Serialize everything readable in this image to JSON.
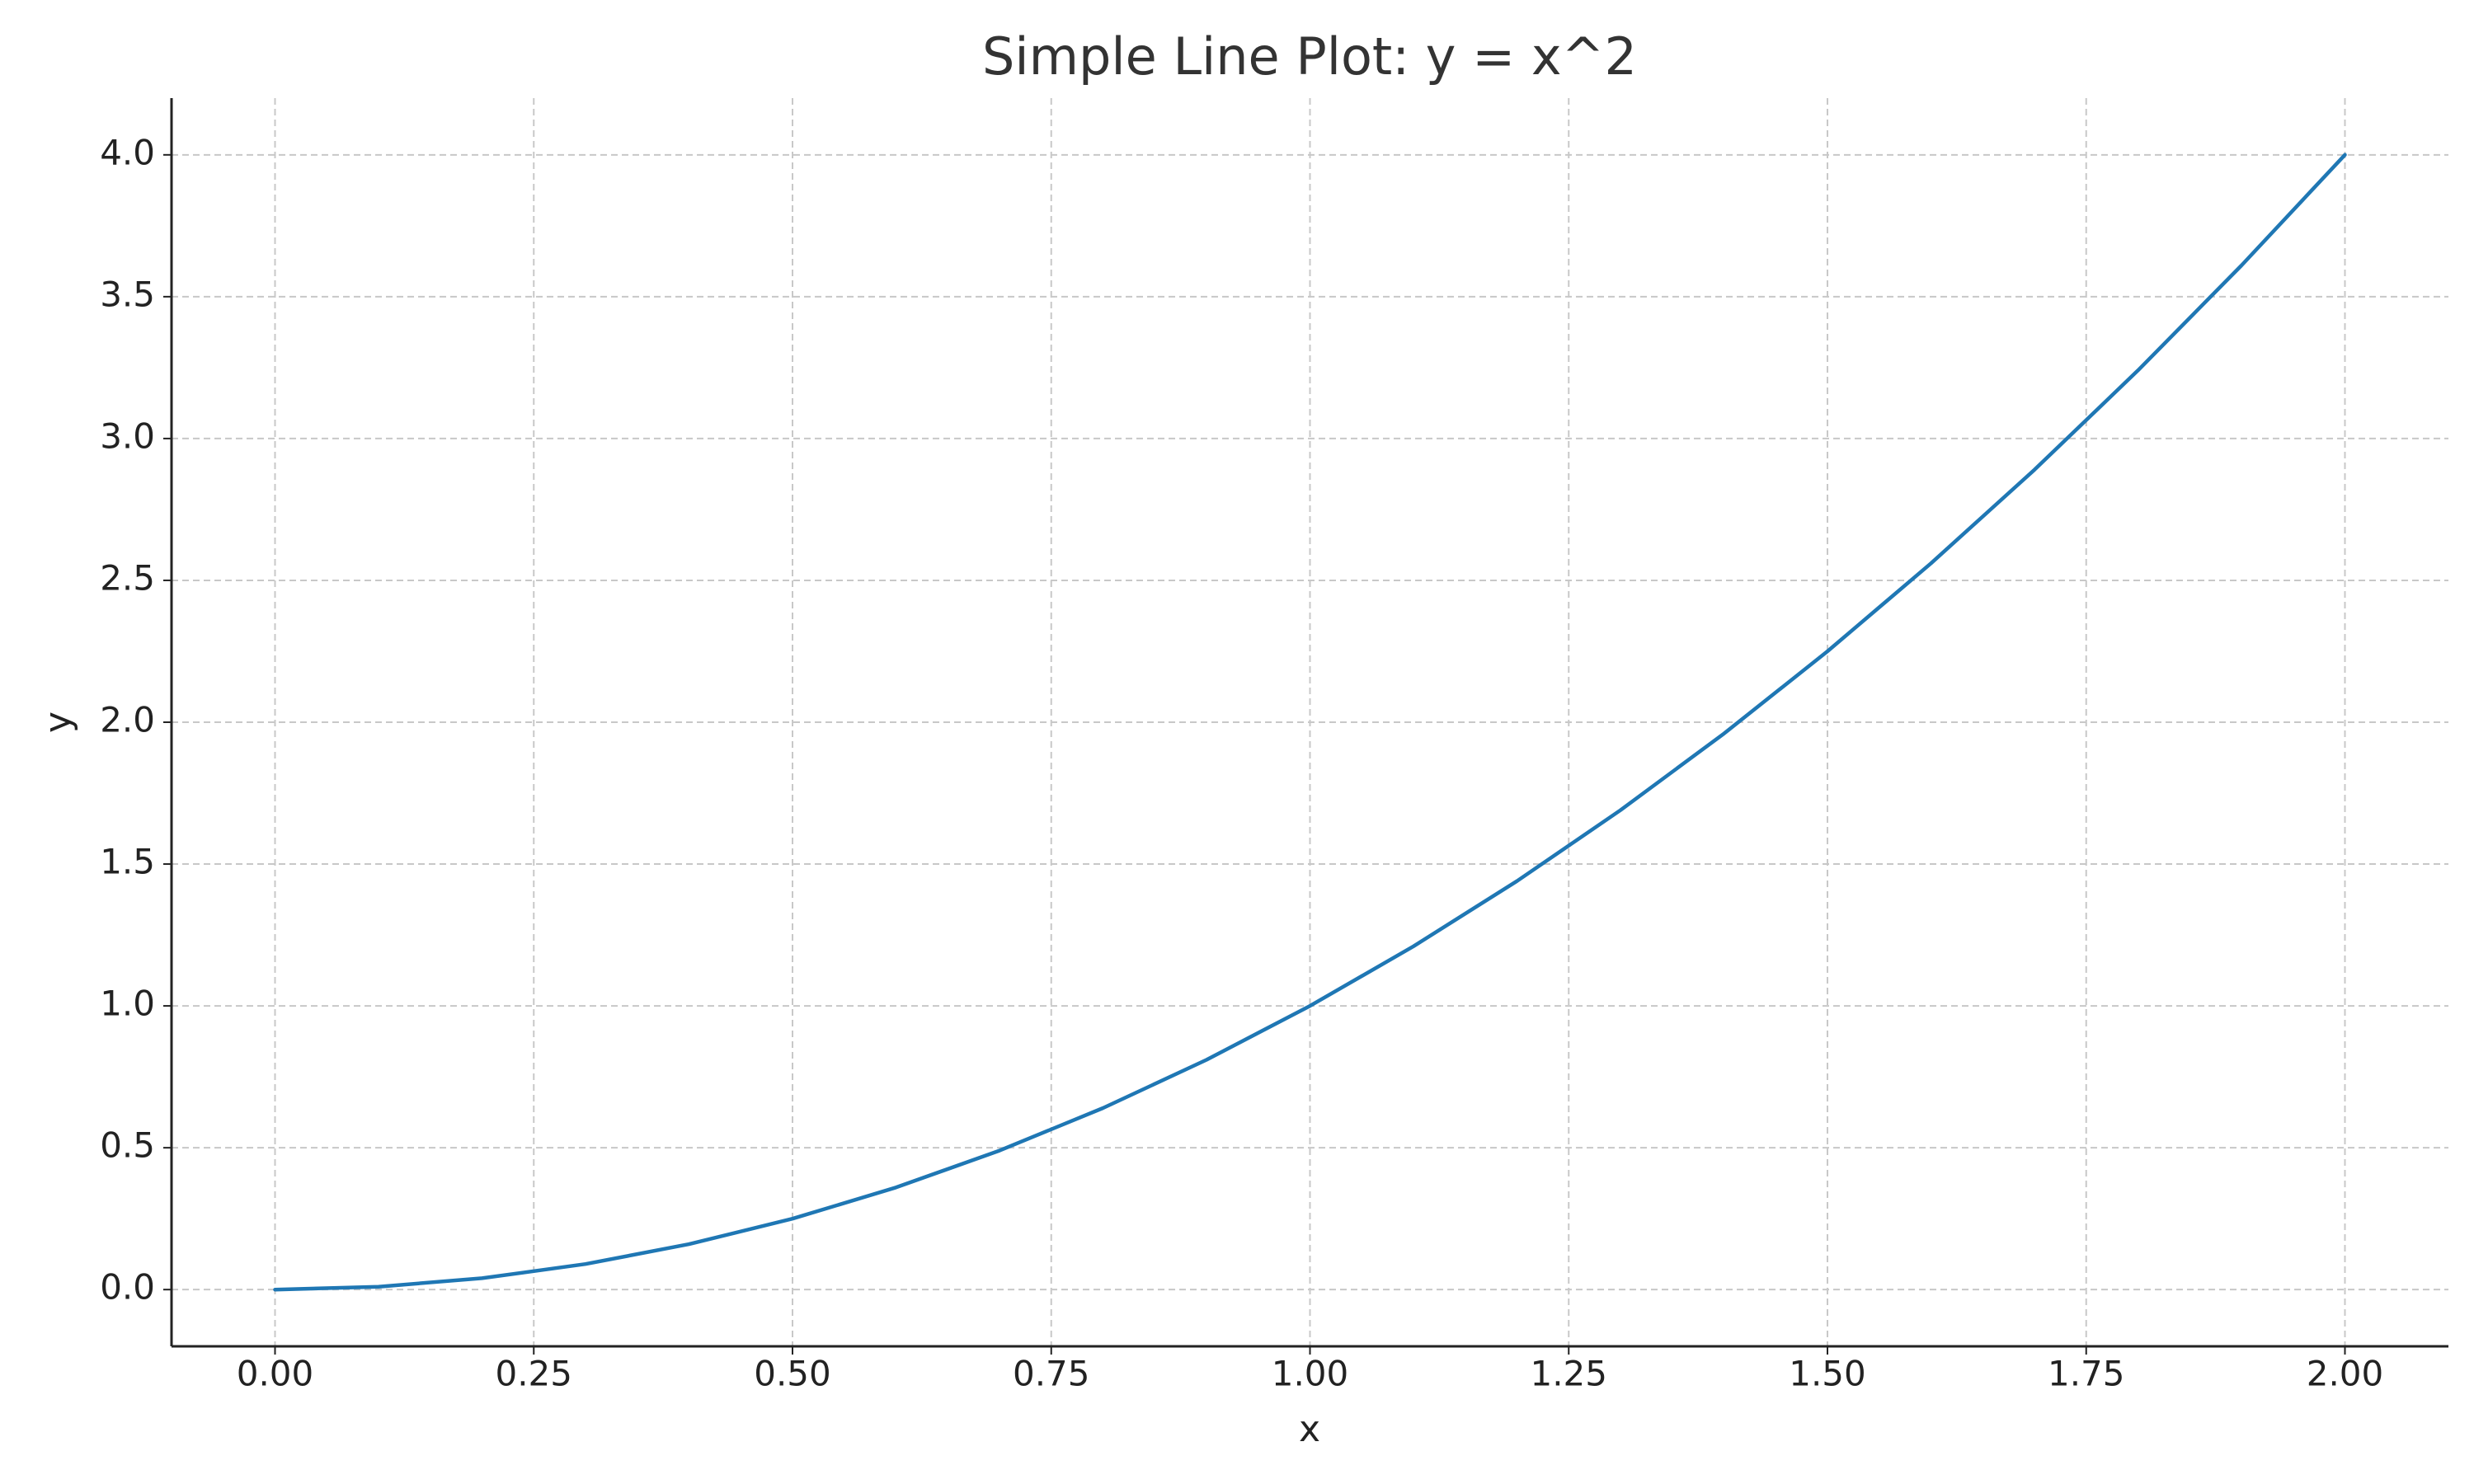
{
  "chart_data": {
    "type": "line",
    "title": "Simple Line Plot: y = x^2",
    "x_label": "x",
    "y_label": "y",
    "x": [
      0,
      0.1,
      0.2,
      0.3,
      0.4,
      0.5,
      0.6,
      0.7,
      0.8,
      0.9,
      1,
      1.1,
      1.2,
      1.3,
      1.4,
      1.5,
      1.6,
      1.7,
      1.8,
      1.9,
      2
    ],
    "values": [
      0,
      0.01,
      0.04,
      0.09,
      0.16,
      0.25,
      0.36,
      0.49,
      0.64,
      0.81,
      1,
      1.21,
      1.44,
      1.69,
      1.96,
      2.25,
      2.56,
      2.89,
      3.24,
      3.61,
      4
    ],
    "color": "#1f77b4",
    "xlim": [
      -0.1,
      2.1
    ],
    "ylim": [
      -0.2,
      4.2
    ],
    "xticks": [
      {
        "value": 0,
        "label": "0.00"
      },
      0.25,
      {
        "value": 0.5,
        "label": "0.50"
      },
      0.75,
      {
        "value": 1,
        "label": "1.00"
      },
      1.25,
      {
        "value": 1.5,
        "label": "1.50"
      },
      1.75,
      {
        "value": 2,
        "label": "2.00"
      }
    ],
    "yticks": [
      {
        "value": 0,
        "label": "0.0"
      },
      0.5,
      {
        "value": 1,
        "label": "1.0"
      },
      1.5,
      {
        "value": 2,
        "label": "2.0"
      },
      2.5,
      {
        "value": 3,
        "label": "3.0"
      },
      3.5,
      {
        "value": 4,
        "label": "4.0"
      }
    ],
    "grid": true
  }
}
